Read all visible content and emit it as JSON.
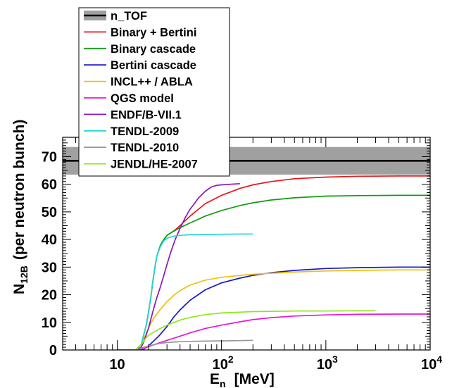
{
  "chart_data": {
    "type": "line",
    "title": "",
    "xlabel_main": "E",
    "xlabel_sub": "n",
    "xlabel_unit": "[MeV]",
    "ylabel_main": "N",
    "ylabel_sub": "12B",
    "ylabel_rest": "(per neutron bunch)",
    "xscale": "log",
    "xlim": [
      3,
      10000
    ],
    "ylim": [
      0,
      77
    ],
    "x_ticks": [
      {
        "value": 10,
        "base": "10",
        "exp": ""
      },
      {
        "value": 100,
        "base": "10",
        "exp": "2"
      },
      {
        "value": 1000,
        "base": "10",
        "exp": "3"
      },
      {
        "value": 10000,
        "base": "10",
        "exp": "4"
      }
    ],
    "y_ticks": [
      0,
      10,
      20,
      30,
      40,
      50,
      60,
      70
    ],
    "legend_position": "top-left",
    "band": {
      "name": "n_TOF",
      "value": 68.5,
      "low": 63.5,
      "high": 73.5,
      "band_color": "#a0a0a0",
      "line_color": "#000000"
    },
    "series": [
      {
        "name": "Binary + Bertini",
        "color": "#e8161b",
        "x": [
          10,
          15,
          17,
          19,
          20,
          21,
          22,
          23,
          24,
          26,
          28,
          30,
          33,
          36,
          40,
          50,
          70,
          100,
          150,
          200,
          300,
          500,
          1000,
          2000,
          5000,
          10000
        ],
        "y": [
          0,
          0,
          2,
          9,
          14,
          19,
          25,
          30,
          34,
          38,
          40,
          41.5,
          42.5,
          43.5,
          45,
          48.5,
          53,
          56,
          58.5,
          59.8,
          61,
          62,
          62.6,
          62.9,
          63,
          63
        ]
      },
      {
        "name": "Binary cascade",
        "color": "#129c12",
        "x": [
          10,
          15,
          17,
          19,
          20,
          21,
          22,
          23,
          24,
          26,
          28,
          30,
          33,
          36,
          40,
          50,
          70,
          100,
          150,
          200,
          300,
          500,
          1000,
          2000,
          5000,
          10000
        ],
        "y": [
          0,
          0,
          2,
          9,
          14,
          19,
          25,
          30,
          34,
          38,
          40,
          41.5,
          42.5,
          43.3,
          44.3,
          46,
          48.5,
          50.5,
          52.3,
          53.3,
          54.3,
          55.1,
          55.7,
          55.9,
          56,
          56
        ]
      },
      {
        "name": "Bertini cascade",
        "color": "#1a18c8",
        "x": [
          15,
          18,
          20,
          22,
          25,
          30,
          35,
          40,
          50,
          70,
          100,
          150,
          200,
          300,
          500,
          1000,
          2000,
          5000,
          10000
        ],
        "y": [
          0,
          0.3,
          1.5,
          3,
          5,
          8.5,
          12,
          14.5,
          18,
          21.8,
          24.3,
          26,
          27,
          28,
          28.8,
          29.5,
          29.8,
          30,
          30
        ]
      },
      {
        "name": "INCL++ / ABLA",
        "color": "#f0c010",
        "x": [
          15,
          17,
          19,
          20,
          22,
          24,
          26,
          30,
          35,
          40,
          50,
          70,
          100,
          150,
          200,
          300,
          500,
          1000,
          2000,
          5000,
          10000
        ],
        "y": [
          0,
          2,
          6,
          8,
          11,
          13,
          14.8,
          17.5,
          19.8,
          21.5,
          23.5,
          25.3,
          26.3,
          27,
          27.4,
          27.8,
          28.2,
          28.6,
          28.8,
          29,
          29
        ]
      },
      {
        "name": "QGS model",
        "color": "#e815d8",
        "x": [
          15,
          18,
          20,
          25,
          30,
          40,
          50,
          70,
          100,
          150,
          200,
          300,
          500,
          1000,
          2000,
          5000,
          10000
        ],
        "y": [
          0,
          0.5,
          1.2,
          2.5,
          3.5,
          5,
          6.2,
          7.8,
          9,
          10.2,
          11,
          11.7,
          12.3,
          12.7,
          12.9,
          13,
          13
        ]
      },
      {
        "name": "ENDF/B-VII.1",
        "color": "#8a18b8",
        "x": [
          15,
          17,
          18,
          20,
          22,
          24,
          26,
          28,
          30,
          33,
          36,
          40,
          45,
          50,
          55,
          60,
          70,
          80,
          90,
          100,
          120,
          150
        ],
        "y": [
          0,
          1,
          3,
          8,
          14,
          19,
          23,
          27,
          31,
          36,
          40,
          44,
          48,
          51,
          53,
          55,
          57.5,
          59,
          59.6,
          59.8,
          60,
          60.2
        ]
      },
      {
        "name": "TENDL-2009",
        "color": "#22d8dc",
        "x": [
          10,
          15,
          17,
          19,
          20,
          21,
          22,
          23,
          24,
          26,
          28,
          30,
          35,
          40,
          50,
          70,
          100,
          150,
          200
        ],
        "y": [
          0,
          0,
          2,
          9,
          14,
          19,
          25,
          30,
          34,
          37.5,
          39.5,
          40.5,
          41.2,
          41.5,
          41.7,
          41.8,
          41.9,
          42,
          42
        ]
      },
      {
        "name": "TENDL-2010",
        "color": "#989898",
        "x": [
          15,
          20,
          25,
          30,
          40,
          50,
          70,
          100,
          150,
          200
        ],
        "y": [
          0,
          1.5,
          2.3,
          2.7,
          3,
          3.1,
          3.2,
          3.3,
          3.4,
          3.5
        ]
      },
      {
        "name": "JENDL/HE-2007",
        "color": "#8ce81c",
        "x": [
          15,
          17,
          19,
          20,
          22,
          25,
          30,
          35,
          40,
          50,
          70,
          100,
          150,
          200,
          300,
          500,
          1000,
          2000,
          3000
        ],
        "y": [
          0,
          2,
          4.5,
          5.3,
          6.3,
          7.5,
          9,
          10,
          10.8,
          11.8,
          12.8,
          13.4,
          13.7,
          13.9,
          14,
          14.1,
          14.1,
          14.2,
          14.2
        ]
      }
    ]
  }
}
